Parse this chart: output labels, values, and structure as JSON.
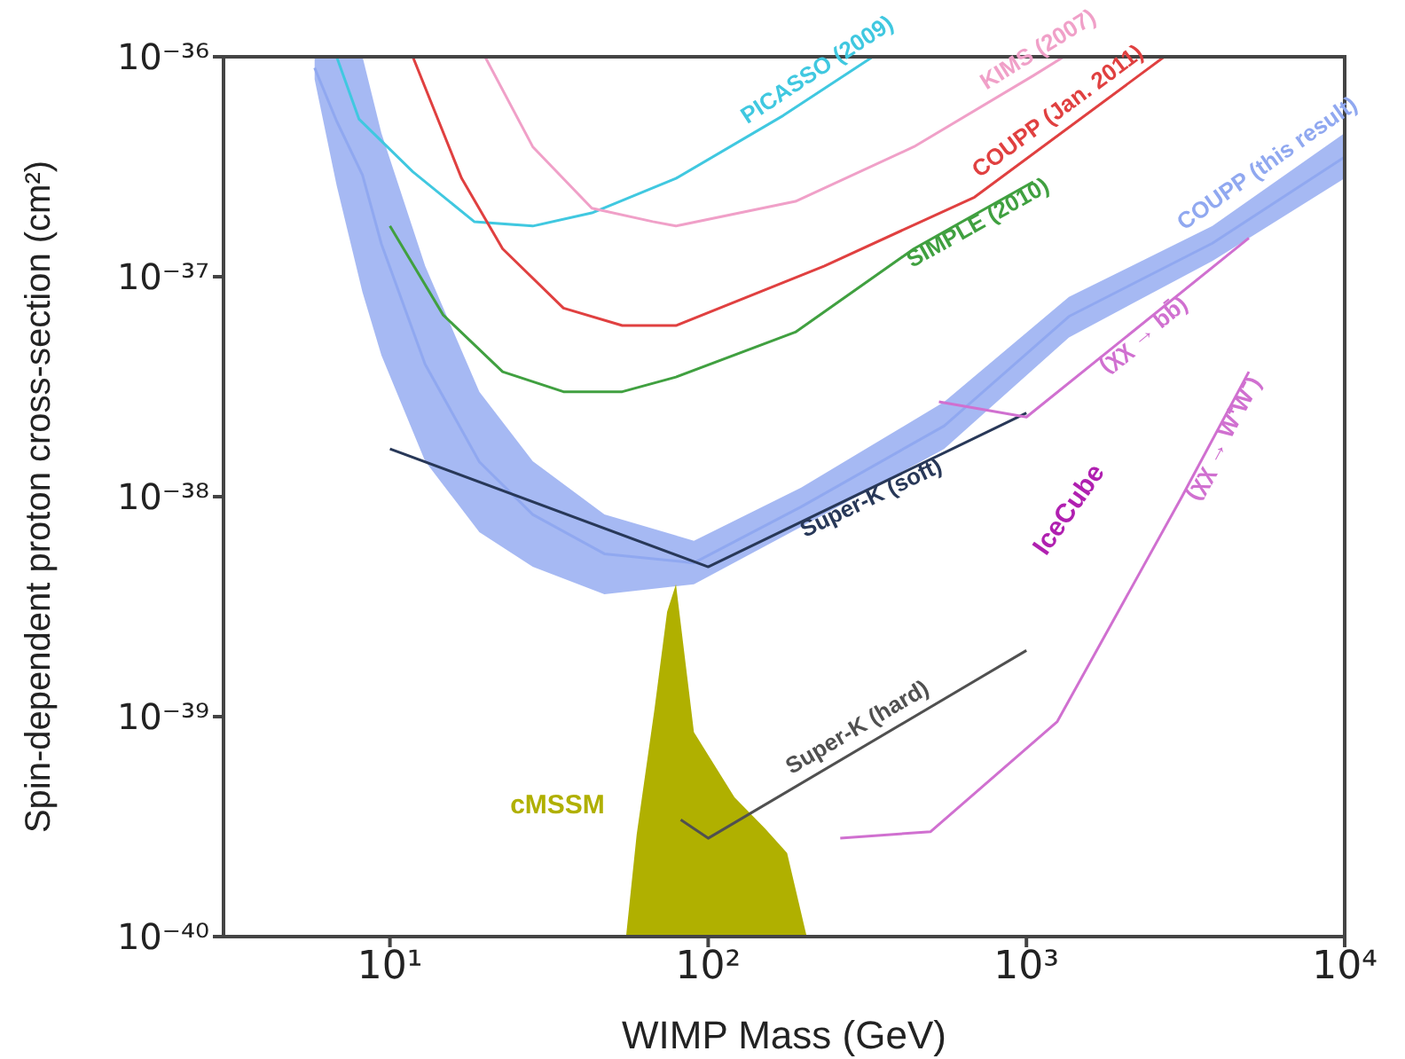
{
  "chart_data": {
    "type": "line",
    "xlabel": "WIMP Mass (GeV)",
    "ylabel": "Spin-dependent proton cross-section (cm²)",
    "log": "xy",
    "xlim": [
      3,
      10000
    ],
    "ylim": [
      1e-40,
      1e-36
    ],
    "xticks": [
      {
        "value": 10,
        "label": "10¹"
      },
      {
        "value": 100,
        "label": "10²"
      },
      {
        "value": 1000,
        "label": "10³"
      },
      {
        "value": 10000,
        "label": "10⁴"
      }
    ],
    "yticks": [
      {
        "value": 1e-40,
        "label": "10⁻⁴⁰"
      },
      {
        "value": 1e-39,
        "label": "10⁻³⁹"
      },
      {
        "value": 1e-38,
        "label": "10⁻³⁸"
      },
      {
        "value": 1e-37,
        "label": "10⁻³⁷"
      },
      {
        "value": 1e-36,
        "label": "10⁻³⁶"
      }
    ],
    "annotations": [
      "IceCube"
    ],
    "series": [
      {
        "name": "COUPP (this result)",
        "type": "line",
        "color": "#90a8f0",
        "x": [
          5.8,
          6.8,
          8.2,
          9.4,
          12.9,
          19.1,
          28.1,
          47.2,
          90.2,
          196,
          552,
          1360,
          3840,
          10000
        ],
        "values": [
          8.9e-37,
          5.1e-37,
          2.9e-37,
          1.41e-37,
          4e-38,
          1.44e-38,
          8.3e-39,
          5.5e-39,
          5e-39,
          9e-39,
          2.1e-38,
          6.6e-38,
          1.42e-37,
          3.5e-37
        ],
        "lower": [
          7.9e-37,
          2.6e-37,
          8.5e-38,
          4.4e-38,
          1.45e-38,
          6.9e-39,
          4.8e-39,
          3.6e-39,
          4e-39,
          7.3e-39,
          1.65e-38,
          5.3e-38,
          1.18e-37,
          2.8e-37
        ],
        "upper": [
          1e-36,
          1e-36,
          1e-36,
          4.5e-37,
          1.12e-37,
          3e-38,
          1.45e-38,
          8.3e-39,
          6.3e-39,
          1.1e-38,
          2.7e-38,
          8.1e-38,
          1.7e-37,
          4.5e-37
        ]
      },
      {
        "name": "cMSSM",
        "type": "area",
        "color": "#b0b000",
        "x": [
          55.2,
          59.6,
          67.8,
          74.3,
          79.2,
          90.2,
          121,
          151,
          177,
          204
        ],
        "values": [
          1e-40,
          2.9e-40,
          1.08e-39,
          3e-39,
          4e-39,
          8.5e-40,
          4.3e-40,
          3.1e-40,
          2.4e-40,
          1e-40
        ]
      },
      {
        "name": "PICASSO (2009)",
        "color": "#40c8e0",
        "x": [
          6.8,
          8.0,
          11.8,
          18.4,
          28.1,
          43.1,
          79.2,
          172,
          329
        ],
        "values": [
          1e-36,
          5.2e-37,
          3e-37,
          1.78e-37,
          1.7e-37,
          1.95e-37,
          2.8e-37,
          5.4e-37,
          1e-36
        ]
      },
      {
        "name": "KIMS (2007)",
        "color": "#f0a0c8",
        "x": [
          19.9,
          28.1,
          43.1,
          67,
          79.2,
          188,
          443,
          1050,
          1310
        ],
        "values": [
          1e-36,
          3.9e-37,
          2.05e-37,
          1.78e-37,
          1.7e-37,
          2.2e-37,
          3.9e-37,
          8.2e-37,
          1e-36
        ]
      },
      {
        "name": "COUPP (Jan. 2011)",
        "color": "#e04040",
        "x": [
          11.8,
          16.8,
          22.6,
          35.1,
          53.7,
          79.2,
          232,
          687,
          2710
        ],
        "values": [
          1e-36,
          2.8e-37,
          1.34e-37,
          7.2e-38,
          6e-38,
          6e-38,
          1.12e-37,
          2.3e-37,
          1e-36
        ]
      },
      {
        "name": "SIMPLE (2010)",
        "color": "#40a040",
        "x": [
          10,
          14.7,
          22.6,
          35.1,
          53.7,
          79.2,
          188,
          443,
          1050
        ],
        "values": [
          1.7e-37,
          6.7e-38,
          3.7e-38,
          3e-38,
          3e-38,
          3.5e-38,
          5.6e-38,
          1.34e-37,
          2.7e-37
        ]
      },
      {
        "name": "Super-K (soft)",
        "color": "#283858",
        "x": [
          10,
          100,
          1000
        ],
        "values": [
          1.65e-38,
          4.8e-39,
          2.4e-38
        ]
      },
      {
        "name": "Super-K (hard)",
        "color": "#505050",
        "x": [
          82,
          100,
          1000
        ],
        "values": [
          3.4e-40,
          2.8e-40,
          2e-39
        ]
      },
      {
        "name": "(χχ → bb̄)",
        "color": "#d070d0",
        "x": [
          531,
          1000,
          5000
        ],
        "values": [
          2.7e-38,
          2.3e-38,
          1.5e-37
        ]
      },
      {
        "name": "(χχ → W⁺W⁻)",
        "color": "#d070d0",
        "x": [
          260,
          500,
          1250,
          3080,
          5000
        ],
        "values": [
          2.8e-40,
          3e-40,
          9.5e-40,
          1e-38,
          3.7e-38
        ]
      }
    ]
  }
}
